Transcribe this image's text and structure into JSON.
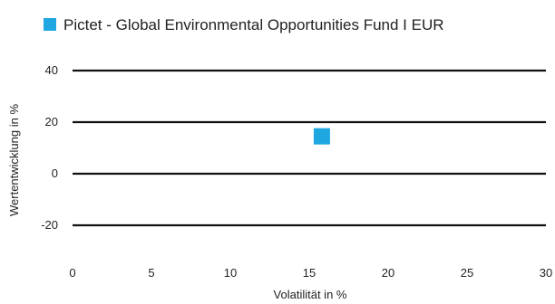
{
  "chart_data": {
    "type": "scatter",
    "title": "",
    "xlabel": "Volatilität in %",
    "ylabel": "Wertentwicklung in %",
    "xlim": [
      0,
      30
    ],
    "ylim": [
      -20,
      40
    ],
    "xticks": [
      0,
      5,
      10,
      15,
      20,
      25,
      30
    ],
    "yticks": [
      40,
      20,
      0,
      -20
    ],
    "x_tick_labels": [
      "0",
      "5",
      "10",
      "15",
      "20",
      "25",
      "30"
    ],
    "y_tick_labels": [
      "40",
      "20",
      "0",
      "-20"
    ],
    "grid": "horizontal",
    "legend_position": "top",
    "series": [
      {
        "name": "Pictet - Global Environmental Opportunities Fund I EUR",
        "color": "#1ea7e1",
        "marker": "square",
        "points": [
          {
            "x": 15.8,
            "y": 14.5
          }
        ]
      }
    ]
  }
}
